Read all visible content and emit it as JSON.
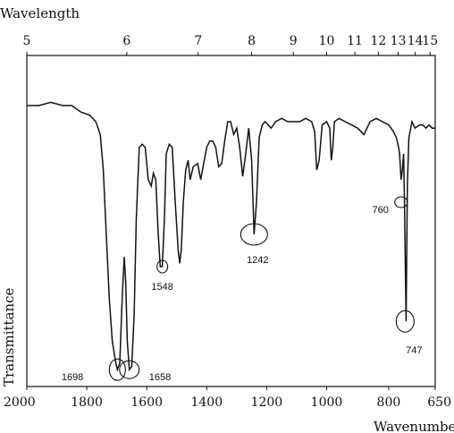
{
  "chart_data": {
    "type": "line",
    "title": "",
    "top_axis_label": "Wavelength",
    "xlabel": "Wavenumber",
    "ylabel": "Transmittance",
    "xlim": [
      2000,
      650
    ],
    "x_ticks": [
      2000,
      1800,
      1600,
      1400,
      1200,
      1000,
      800,
      650
    ],
    "top_ticks": [
      5,
      6,
      7,
      8,
      9,
      10,
      11,
      12,
      13,
      14,
      15
    ],
    "y_scale": "transmittance (0 bottom, 1 top)",
    "series": [
      {
        "x": [
          2000,
          1960,
          1920,
          1880,
          1850,
          1820,
          1790,
          1770,
          1755,
          1745,
          1735,
          1725,
          1715,
          1705,
          1698,
          1690,
          1682,
          1675,
          1670,
          1665,
          1658,
          1650,
          1642,
          1635,
          1625,
          1615,
          1605,
          1595,
          1585,
          1578,
          1570,
          1562,
          1555,
          1548,
          1541,
          1535,
          1525,
          1515,
          1505,
          1495,
          1490,
          1485,
          1478,
          1470,
          1462,
          1455,
          1445,
          1430,
          1420,
          1410,
          1400,
          1390,
          1380,
          1370,
          1360,
          1350,
          1340,
          1330,
          1320,
          1310,
          1300,
          1290,
          1280,
          1270,
          1260,
          1250,
          1242,
          1234,
          1225,
          1215,
          1205,
          1195,
          1185,
          1170,
          1150,
          1130,
          1110,
          1090,
          1070,
          1050,
          1040,
          1033,
          1025,
          1015,
          1000,
          990,
          985,
          980,
          975,
          960,
          940,
          920,
          900,
          880,
          860,
          840,
          820,
          800,
          785,
          775,
          768,
          765,
          760,
          756,
          752,
          749,
          747,
          744,
          740,
          735,
          725,
          715,
          700,
          690,
          680,
          670,
          660,
          650
        ],
        "y": [
          0.85,
          0.85,
          0.86,
          0.85,
          0.85,
          0.83,
          0.82,
          0.8,
          0.76,
          0.65,
          0.45,
          0.25,
          0.12,
          0.06,
          0.03,
          0.05,
          0.25,
          0.38,
          0.3,
          0.12,
          0.03,
          0.04,
          0.2,
          0.5,
          0.72,
          0.73,
          0.72,
          0.62,
          0.6,
          0.64,
          0.62,
          0.46,
          0.35,
          0.35,
          0.5,
          0.7,
          0.73,
          0.72,
          0.55,
          0.4,
          0.36,
          0.4,
          0.55,
          0.65,
          0.68,
          0.62,
          0.66,
          0.67,
          0.62,
          0.67,
          0.72,
          0.74,
          0.74,
          0.72,
          0.66,
          0.67,
          0.74,
          0.8,
          0.8,
          0.76,
          0.78,
          0.72,
          0.63,
          0.7,
          0.78,
          0.68,
          0.45,
          0.55,
          0.75,
          0.79,
          0.8,
          0.79,
          0.78,
          0.8,
          0.81,
          0.8,
          0.8,
          0.8,
          0.81,
          0.8,
          0.77,
          0.65,
          0.68,
          0.79,
          0.8,
          0.78,
          0.68,
          0.72,
          0.8,
          0.81,
          0.8,
          0.79,
          0.78,
          0.76,
          0.8,
          0.81,
          0.8,
          0.79,
          0.77,
          0.75,
          0.72,
          0.7,
          0.62,
          0.65,
          0.7,
          0.55,
          0.4,
          0.18,
          0.6,
          0.75,
          0.8,
          0.78,
          0.79,
          0.79,
          0.78,
          0.79,
          0.78,
          0.78
        ]
      }
    ],
    "annotations": [
      {
        "label": "1698",
        "x": 1698,
        "y": 0.03
      },
      {
        "label": "1658",
        "x": 1658,
        "y": 0.03
      },
      {
        "label": "1548",
        "x": 1548,
        "y": 0.35
      },
      {
        "label": "1242",
        "x": 1242,
        "y": 0.45
      },
      {
        "label": "760",
        "x": 760,
        "y": 0.55
      },
      {
        "label": "747",
        "x": 747,
        "y": 0.18
      }
    ],
    "grid": false,
    "legend": "none"
  }
}
